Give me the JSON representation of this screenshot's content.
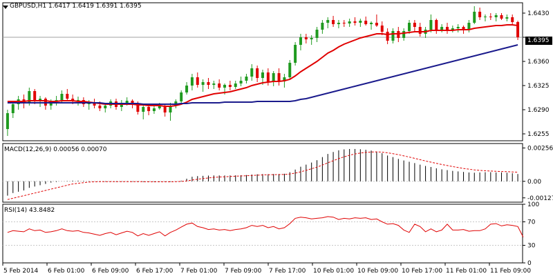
{
  "header": {
    "symbol": "GBPUSD,H1",
    "ohlc": "1.6417 1.6419 1.6391 1.6395"
  },
  "macd": {
    "label": "MACD(12,26,9) 0.00056 0.00070"
  },
  "rsi": {
    "label": "RSI(14) 43.8482"
  },
  "current_price": "1.6395",
  "colors": {
    "up_candle": "#1f9a1f",
    "down_candle": "#e00000",
    "ema_fast": "#e00000",
    "ema_slow": "#1a1a8c",
    "grid": "#c8c8c8",
    "frame": "#000000",
    "macd_signal": "#e00000",
    "rsi_line": "#e00000"
  },
  "chart_data": [
    {
      "type": "candlestick",
      "title": "GBPUSD,H1",
      "y_ticks": [
        "1.6430",
        "1.6395",
        "1.6360",
        "1.6325",
        "1.6290",
        "1.6255"
      ],
      "ylim": [
        1.6245,
        1.6445
      ],
      "x_ticks": [
        "5 Feb 2014",
        "6 Feb 01:00",
        "6 Feb 09:00",
        "6 Feb 17:00",
        "7 Feb 01:00",
        "7 Feb 09:00",
        "7 Feb 17:00",
        "10 Feb 01:00",
        "10 Feb 09:00",
        "10 Feb 17:00",
        "11 Feb 01:00",
        "11 Feb 09:00"
      ],
      "candles": [
        [
          1.6262,
          1.629,
          1.6252,
          1.6285
        ],
        [
          1.6285,
          1.6302,
          1.6278,
          1.6298
        ],
        [
          1.6298,
          1.631,
          1.629,
          1.6305
        ],
        [
          1.6305,
          1.6312,
          1.6292,
          1.63
        ],
        [
          1.63,
          1.6322,
          1.6296,
          1.6317
        ],
        [
          1.6317,
          1.632,
          1.6298,
          1.6302
        ],
        [
          1.6302,
          1.631,
          1.6294,
          1.6306
        ],
        [
          1.6306,
          1.6308,
          1.629,
          1.6296
        ],
        [
          1.6296,
          1.6305,
          1.629,
          1.6302
        ],
        [
          1.6302,
          1.631,
          1.6296,
          1.6304
        ],
        [
          1.6304,
          1.6318,
          1.63,
          1.6313
        ],
        [
          1.6313,
          1.632,
          1.6302,
          1.6306
        ],
        [
          1.6306,
          1.6312,
          1.6298,
          1.6302
        ],
        [
          1.6302,
          1.6309,
          1.6296,
          1.6304
        ],
        [
          1.6304,
          1.6308,
          1.6294,
          1.6298
        ],
        [
          1.6298,
          1.6304,
          1.629,
          1.63
        ],
        [
          1.63,
          1.6306,
          1.6292,
          1.6296
        ],
        [
          1.6296,
          1.6302,
          1.6288,
          1.6292
        ],
        [
          1.6292,
          1.63,
          1.6286,
          1.6296
        ],
        [
          1.6296,
          1.6305,
          1.6292,
          1.6302
        ],
        [
          1.6302,
          1.6306,
          1.629,
          1.6294
        ],
        [
          1.6294,
          1.6304,
          1.6288,
          1.63
        ],
        [
          1.63,
          1.6308,
          1.6296,
          1.6303
        ],
        [
          1.6303,
          1.6305,
          1.6292,
          1.6298
        ],
        [
          1.6298,
          1.6302,
          1.6283,
          1.6287
        ],
        [
          1.6287,
          1.6297,
          1.6276,
          1.6294
        ],
        [
          1.6294,
          1.6298,
          1.6282,
          1.6288
        ],
        [
          1.6288,
          1.6296,
          1.6284,
          1.6292
        ],
        [
          1.6292,
          1.63,
          1.629,
          1.6296
        ],
        [
          1.6296,
          1.6298,
          1.628,
          1.6286
        ],
        [
          1.6286,
          1.63,
          1.6274,
          1.6296
        ],
        [
          1.6296,
          1.6305,
          1.6292,
          1.6302
        ],
        [
          1.6302,
          1.6318,
          1.63,
          1.6315
        ],
        [
          1.6315,
          1.633,
          1.6312,
          1.6325
        ],
        [
          1.6325,
          1.6342,
          1.6318,
          1.6337
        ],
        [
          1.6337,
          1.6344,
          1.6322,
          1.6326
        ],
        [
          1.6326,
          1.6334,
          1.6316,
          1.633
        ],
        [
          1.633,
          1.6336,
          1.632,
          1.6326
        ],
        [
          1.6326,
          1.6332,
          1.632,
          1.6328
        ],
        [
          1.6328,
          1.6334,
          1.6318,
          1.6322
        ],
        [
          1.6322,
          1.6328,
          1.6312,
          1.6326
        ],
        [
          1.6326,
          1.6332,
          1.6318,
          1.6323
        ],
        [
          1.6323,
          1.6332,
          1.632,
          1.6328
        ],
        [
          1.6328,
          1.6338,
          1.6324,
          1.6332
        ],
        [
          1.6332,
          1.6342,
          1.6328,
          1.6338
        ],
        [
          1.6338,
          1.6356,
          1.6332,
          1.635
        ],
        [
          1.635,
          1.6354,
          1.633,
          1.6336
        ],
        [
          1.6336,
          1.6348,
          1.6326,
          1.6344
        ],
        [
          1.6344,
          1.635,
          1.6325,
          1.633
        ],
        [
          1.633,
          1.6346,
          1.6324,
          1.6343
        ],
        [
          1.6343,
          1.635,
          1.6325,
          1.6331
        ],
        [
          1.6331,
          1.6342,
          1.6322,
          1.6337
        ],
        [
          1.6337,
          1.6362,
          1.6334,
          1.6358
        ],
        [
          1.6358,
          1.6388,
          1.6354,
          1.6384
        ],
        [
          1.6384,
          1.64,
          1.6376,
          1.6395
        ],
        [
          1.6395,
          1.64,
          1.6386,
          1.6392
        ],
        [
          1.6392,
          1.6398,
          1.6384,
          1.6394
        ],
        [
          1.6394,
          1.641,
          1.6388,
          1.6406
        ],
        [
          1.6406,
          1.642,
          1.64,
          1.6416
        ],
        [
          1.6416,
          1.6424,
          1.6408,
          1.642
        ],
        [
          1.642,
          1.6426,
          1.641,
          1.6414
        ],
        [
          1.6414,
          1.642,
          1.6408,
          1.6416
        ],
        [
          1.6416,
          1.642,
          1.641,
          1.6415
        ],
        [
          1.6415,
          1.6422,
          1.641,
          1.6418
        ],
        [
          1.6418,
          1.6424,
          1.6412,
          1.6416
        ],
        [
          1.6416,
          1.6422,
          1.641,
          1.6419
        ],
        [
          1.6419,
          1.6425,
          1.6412,
          1.6414
        ],
        [
          1.6414,
          1.6418,
          1.6406,
          1.6416
        ],
        [
          1.6416,
          1.6428,
          1.641,
          1.6412
        ],
        [
          1.6412,
          1.6418,
          1.6398,
          1.6403
        ],
        [
          1.6403,
          1.6408,
          1.6385,
          1.639
        ],
        [
          1.639,
          1.6408,
          1.6386,
          1.6404
        ],
        [
          1.6404,
          1.641,
          1.6388,
          1.6394
        ],
        [
          1.6394,
          1.6408,
          1.639,
          1.6404
        ],
        [
          1.6404,
          1.642,
          1.64,
          1.6416
        ],
        [
          1.6416,
          1.642,
          1.6404,
          1.641
        ],
        [
          1.641,
          1.6416,
          1.6396,
          1.64
        ],
        [
          1.64,
          1.641,
          1.6394,
          1.6406
        ],
        [
          1.6406,
          1.6428,
          1.6402,
          1.642
        ],
        [
          1.642,
          1.6422,
          1.64,
          1.6406
        ],
        [
          1.6406,
          1.6414,
          1.6402,
          1.641
        ],
        [
          1.641,
          1.6416,
          1.64,
          1.6406
        ],
        [
          1.6406,
          1.6412,
          1.6402,
          1.6408
        ],
        [
          1.6408,
          1.6414,
          1.6402,
          1.641
        ],
        [
          1.641,
          1.6412,
          1.64,
          1.6406
        ],
        [
          1.6406,
          1.642,
          1.6402,
          1.6416
        ],
        [
          1.6416,
          1.644,
          1.6414,
          1.6432
        ],
        [
          1.6432,
          1.6438,
          1.642,
          1.6424
        ],
        [
          1.6424,
          1.6428,
          1.6418,
          1.6425
        ],
        [
          1.6425,
          1.643,
          1.642,
          1.6424
        ],
        [
          1.6424,
          1.643,
          1.6418,
          1.6427
        ],
        [
          1.6427,
          1.643,
          1.642,
          1.6422
        ],
        [
          1.6422,
          1.6428,
          1.6418,
          1.6424
        ],
        [
          1.6424,
          1.6428,
          1.6414,
          1.6417
        ],
        [
          1.6417,
          1.6419,
          1.6391,
          1.6395
        ]
      ],
      "series": [
        {
          "name": "EMA fast",
          "values": [
            1.6302,
            1.6302,
            1.6302,
            1.6302,
            1.6303,
            1.6303,
            1.6303,
            1.6303,
            1.6302,
            1.6302,
            1.6303,
            1.6303,
            1.6303,
            1.6302,
            1.6302,
            1.6301,
            1.63,
            1.6299,
            1.6298,
            1.6298,
            1.6298,
            1.6298,
            1.6298,
            1.6298,
            1.6297,
            1.6297,
            1.6296,
            1.6296,
            1.6296,
            1.6295,
            1.6295,
            1.6296,
            1.6298,
            1.6301,
            1.6305,
            1.6307,
            1.6309,
            1.6311,
            1.6313,
            1.6314,
            1.6315,
            1.6316,
            1.6318,
            1.632,
            1.6322,
            1.6325,
            1.6327,
            1.6329,
            1.633,
            1.6331,
            1.6331,
            1.6332,
            1.6334,
            1.6339,
            1.6345,
            1.635,
            1.6355,
            1.636,
            1.6366,
            1.6372,
            1.6376,
            1.6381,
            1.6385,
            1.6388,
            1.6391,
            1.6394,
            1.6396,
            1.6398,
            1.64,
            1.64,
            1.6399,
            1.64,
            1.64,
            1.6401,
            1.6402,
            1.6403,
            1.6403,
            1.6403,
            1.6405,
            1.6405,
            1.6405,
            1.6405,
            1.6405,
            1.6406,
            1.6406,
            1.6406,
            1.6408,
            1.6409,
            1.641,
            1.6411,
            1.6412,
            1.6412,
            1.6413,
            1.6413,
            1.6412
          ]
        },
        {
          "name": "EMA slow",
          "values": [
            1.63,
            1.63,
            1.63,
            1.63,
            1.63,
            1.63,
            1.63,
            1.63,
            1.63,
            1.63,
            1.63,
            1.63,
            1.63,
            1.63,
            1.63,
            1.63,
            1.63,
            1.63,
            1.6299,
            1.6299,
            1.6299,
            1.6299,
            1.6299,
            1.6299,
            1.6299,
            1.6298,
            1.6298,
            1.6298,
            1.6298,
            1.6298,
            1.6298,
            1.6298,
            1.6299,
            1.6299,
            1.63,
            1.63,
            1.63,
            1.63,
            1.63,
            1.63,
            1.6301,
            1.6301,
            1.6301,
            1.6301,
            1.6301,
            1.6301,
            1.6302,
            1.6302,
            1.6302,
            1.6302,
            1.6302,
            1.6302,
            1.6302,
            1.6303,
            1.6305,
            1.6306,
            1.6308,
            1.631,
            1.6312,
            1.6314,
            1.6316,
            1.6318,
            1.632,
            1.6322,
            1.6324,
            1.6326,
            1.6328,
            1.633,
            1.6332,
            1.6334,
            1.6336,
            1.6338,
            1.634,
            1.6342,
            1.6344,
            1.6346,
            1.6348,
            1.635,
            1.6352,
            1.6354,
            1.6356,
            1.6358,
            1.636,
            1.6362,
            1.6364,
            1.6366,
            1.6368,
            1.637,
            1.6372,
            1.6374,
            1.6376,
            1.6378,
            1.638,
            1.6382,
            1.6384
          ]
        }
      ]
    },
    {
      "type": "bar",
      "title": "MACD(12,26,9) 0.00056 0.00070",
      "y_ticks": [
        "0.00256",
        "0.00",
        "-0.00127"
      ],
      "ylim": [
        -0.0016,
        0.0029
      ],
      "series": [
        {
          "name": "MACD",
          "values": [
            -0.0011,
            -0.0009,
            -0.0008,
            -0.0007,
            -0.0005,
            -0.0004,
            -0.0003,
            -0.0002,
            -0.0001,
            -5e-05,
            0.0,
            2e-05,
            5e-05,
            5e-05,
            4e-05,
            2e-05,
            0.0,
            -2e-05,
            -3e-05,
            -4e-05,
            -4e-05,
            -3e-05,
            -2e-05,
            -3e-05,
            -5e-05,
            -5e-05,
            -6e-05,
            -5e-05,
            -4e-05,
            -6e-05,
            -4e-05,
            0.0,
            5e-05,
            0.0002,
            0.00035,
            0.0004,
            0.00042,
            0.00044,
            0.00045,
            0.00045,
            0.00045,
            0.00045,
            0.00046,
            0.00047,
            0.00048,
            0.00052,
            0.00054,
            0.00056,
            0.00055,
            0.00056,
            0.00056,
            0.00058,
            0.0007,
            0.0009,
            0.00112,
            0.00128,
            0.00144,
            0.00162,
            0.00186,
            0.0021,
            0.00225,
            0.00238,
            0.00245,
            0.00248,
            0.00248,
            0.00246,
            0.00242,
            0.00236,
            0.00228,
            0.00216,
            0.00198,
            0.00186,
            0.00172,
            0.0016,
            0.0015,
            0.0014,
            0.00128,
            0.00118,
            0.0011,
            0.001,
            0.00092,
            0.00086,
            0.0008,
            0.00076,
            0.00072,
            0.00068,
            0.00066,
            0.00068,
            0.0007,
            0.0007,
            0.00068,
            0.00068,
            0.00066,
            0.00062,
            0.00056
          ]
        },
        {
          "name": "Signal",
          "values": [
            -0.0014,
            -0.0013,
            -0.0012,
            -0.0011,
            -0.001,
            -0.0009,
            -0.0008,
            -0.0007,
            -0.0006,
            -0.0005,
            -0.0004,
            -0.0003,
            -0.0002,
            -0.00015,
            -0.0001,
            -6e-05,
            -4e-05,
            -3e-05,
            -2e-05,
            -2e-05,
            -2e-05,
            -2e-05,
            -2e-05,
            -2e-05,
            -3e-05,
            -3e-05,
            -4e-05,
            -4e-05,
            -4e-05,
            -4e-05,
            -4e-05,
            -3e-05,
            -1e-05,
            3e-05,
            0.0001,
            0.00016,
            0.00021,
            0.00026,
            0.0003,
            0.00033,
            0.00035,
            0.00037,
            0.00039,
            0.00041,
            0.00043,
            0.00045,
            0.00047,
            0.00049,
            0.0005,
            0.00051,
            0.00052,
            0.00053,
            0.00056,
            0.00063,
            0.00073,
            0.00084,
            0.00096,
            0.00109,
            0.00125,
            0.00142,
            0.00158,
            0.00174,
            0.00188,
            0.002,
            0.0021,
            0.00217,
            0.00222,
            0.00225,
            0.00226,
            0.00224,
            0.00219,
            0.00212,
            0.00204,
            0.00195,
            0.00186,
            0.00176,
            0.00166,
            0.00156,
            0.00147,
            0.00138,
            0.00129,
            0.00121,
            0.00113,
            0.00106,
            0.00099,
            0.00093,
            0.00088,
            0.00084,
            0.00081,
            0.00079,
            0.00077,
            0.00075,
            0.00074,
            0.00072,
            0.0007
          ]
        }
      ]
    },
    {
      "type": "line",
      "title": "RSI(14) 43.8482",
      "y_ticks": [
        "100",
        "70",
        "30",
        "0"
      ],
      "ylim": [
        0,
        100
      ],
      "series": [
        {
          "name": "RSI(14)",
          "values": [
            52,
            55,
            54,
            53,
            58,
            55,
            56,
            52,
            53,
            55,
            58,
            55,
            54,
            55,
            52,
            51,
            49,
            47,
            50,
            52,
            48,
            51,
            54,
            52,
            46,
            50,
            47,
            50,
            53,
            46,
            52,
            56,
            61,
            66,
            68,
            62,
            60,
            57,
            58,
            56,
            57,
            55,
            57,
            58,
            60,
            64,
            62,
            64,
            60,
            62,
            58,
            60,
            67,
            76,
            78,
            77,
            75,
            76,
            77,
            79,
            78,
            74,
            76,
            75,
            77,
            76,
            77,
            74,
            75,
            70,
            66,
            67,
            64,
            56,
            52,
            66,
            62,
            53,
            58,
            53,
            56,
            66,
            56,
            56,
            57,
            54,
            55,
            55,
            58,
            66,
            67,
            63,
            65,
            64,
            62,
            44
          ]
        }
      ]
    }
  ]
}
